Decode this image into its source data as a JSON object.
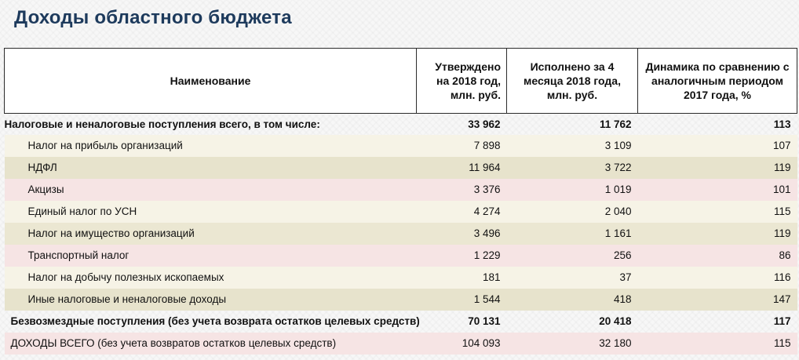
{
  "title": "Доходы областного бюджета",
  "table": {
    "headers": {
      "name": "Наименование",
      "approved": "Утверждено на 2018 год, млн. руб.",
      "executed": "Исполнено за 4 месяца 2018 года, млн. руб.",
      "dynamics": "Динамика по сравнению с аналогичным периодом 2017 года, %"
    },
    "rows": [
      {
        "name": "Налоговые и неналоговые поступления всего, в том числе:",
        "approved": "33 962",
        "executed": "11 762",
        "dynamics": "113"
      },
      {
        "name": "Налог на прибыль организаций",
        "approved": "7 898",
        "executed": "3 109",
        "dynamics": "107"
      },
      {
        "name": "НДФЛ",
        "approved": "11 964",
        "executed": "3 722",
        "dynamics": "119"
      },
      {
        "name": "Акцизы",
        "approved": "3 376",
        "executed": "1 019",
        "dynamics": "101"
      },
      {
        "name": "Единый налог по УСН",
        "approved": "4 274",
        "executed": "2 040",
        "dynamics": "115"
      },
      {
        "name": "Налог на имущество организаций",
        "approved": "3 496",
        "executed": "1 161",
        "dynamics": "119"
      },
      {
        "name": "Транспортный налог",
        "approved": "1 229",
        "executed": "256",
        "dynamics": "86"
      },
      {
        "name": "Налог на добычу полезных ископаемых",
        "approved": "181",
        "executed": "37",
        "dynamics": "116"
      },
      {
        "name": "Иные налоговые и неналоговые доходы",
        "approved": "1 544",
        "executed": "418",
        "dynamics": "147"
      },
      {
        "name": "Безвозмездные поступления (без учета возврата остатков целевых средств)",
        "approved": "70 131",
        "executed": "20 418",
        "dynamics": "117"
      },
      {
        "name": "ДОХОДЫ ВСЕГО (без учета возвратов остатков целевых средств)",
        "approved": "104 093",
        "executed": "32 180",
        "dynamics": "115"
      }
    ]
  }
}
